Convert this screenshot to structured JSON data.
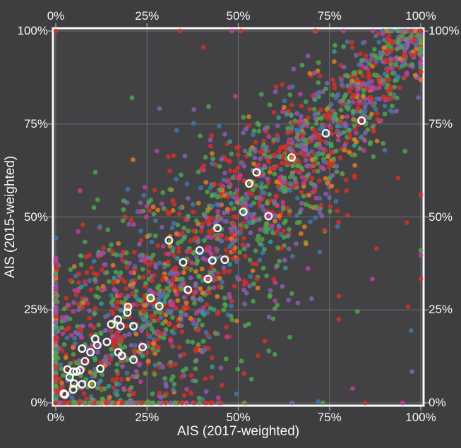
{
  "page": {
    "background_color": "#3e3e41",
    "plot_background_color": "#424245",
    "text_color": "#f7f7f7",
    "frame_color": "#fbfbfb",
    "gridline_color": "#98989a",
    "tick_mark_color": "#9b9b9d"
  },
  "chart_data": {
    "type": "scatter",
    "title": "",
    "xlabel": "AIS (2017-weighted)",
    "ylabel": "AIS (2015-weighted)",
    "xlim": [
      0,
      100
    ],
    "ylim": [
      0,
      100
    ],
    "grid": true,
    "axes_mirrored_all_sides": true,
    "tick_values": [
      0,
      25,
      50,
      75,
      100
    ],
    "x_tick_labels": [
      "0%",
      "25%",
      "50%",
      "75%",
      "100%"
    ],
    "y_tick_labels": [
      "0%",
      "25%",
      "50%",
      "75%",
      "100%"
    ],
    "relationship": "strong positive correlation clustered along the y = x diagonal, widest spread at low-mid values, converging to a point at (100%, 100%)",
    "series": [
      {
        "name": "red",
        "color": "#d3302b",
        "weight": 0.3
      },
      {
        "name": "green",
        "color": "#4ea64e",
        "weight": 0.26
      },
      {
        "name": "purple",
        "color": "#8a5fb4",
        "weight": 0.13
      },
      {
        "name": "blue",
        "color": "#4278ae",
        "weight": 0.12
      },
      {
        "name": "magenta",
        "color": "#bf3e9d",
        "weight": 0.1
      },
      {
        "name": "orange",
        "color": "#e4801f",
        "weight": 0.07
      },
      {
        "name": "teal",
        "color": "#2ba198",
        "weight": 0.02
      }
    ],
    "marker": {
      "radius": 3.4,
      "opacity": 0.82
    },
    "generator": {
      "seed": 42,
      "count": 2600,
      "low_end_bias_exponent": 1.3,
      "noise_sd_base": 3.5,
      "noise_sd_slope": 13,
      "outlier_fraction": 0.05,
      "outlier_scale": 2.2,
      "extreme_fraction": 0.01,
      "extreme_scale": 4
    },
    "highlight_marker": {
      "radius": 4.8,
      "stroke": "#ffffff",
      "stroke_width": 2.4,
      "fill": "none"
    },
    "highlighted_points": [
      [
        2.2,
        2.5
      ],
      [
        2.5,
        2.2
      ],
      [
        3.2,
        9.0
      ],
      [
        3.8,
        6.9
      ],
      [
        4.8,
        8.4
      ],
      [
        4.8,
        3.6
      ],
      [
        5.0,
        5.2
      ],
      [
        5.7,
        8.4
      ],
      [
        6.7,
        8.8
      ],
      [
        7.2,
        14.6
      ],
      [
        7.2,
        5.0
      ],
      [
        8.0,
        11.2
      ],
      [
        9.5,
        13.6
      ],
      [
        9.9,
        5.0
      ],
      [
        10.8,
        17.2
      ],
      [
        11.4,
        15.5
      ],
      [
        12.2,
        9.2
      ],
      [
        14.0,
        16.4
      ],
      [
        15.2,
        21.1
      ],
      [
        17.0,
        22.4
      ],
      [
        17.1,
        13.6
      ],
      [
        17.7,
        20.6
      ],
      [
        18.1,
        12.7
      ],
      [
        19.6,
        24.3
      ],
      [
        19.8,
        25.8
      ],
      [
        21.3,
        20.6
      ],
      [
        21.3,
        11.6
      ],
      [
        23.8,
        15.0
      ],
      [
        26.0,
        28.2
      ],
      [
        28.4,
        26.0
      ],
      [
        31.0,
        43.7
      ],
      [
        34.9,
        37.8
      ],
      [
        36.2,
        30.4
      ],
      [
        39.4,
        41.0
      ],
      [
        41.7,
        33.3
      ],
      [
        42.9,
        38.3
      ],
      [
        44.3,
        47.0
      ],
      [
        46.3,
        38.5
      ],
      [
        51.4,
        51.4
      ],
      [
        53.0,
        59.0
      ],
      [
        55.0,
        62.0
      ],
      [
        58.3,
        50.2
      ],
      [
        64.6,
        66.0
      ],
      [
        74.0,
        72.5
      ],
      [
        83.8,
        75.9
      ]
    ]
  }
}
